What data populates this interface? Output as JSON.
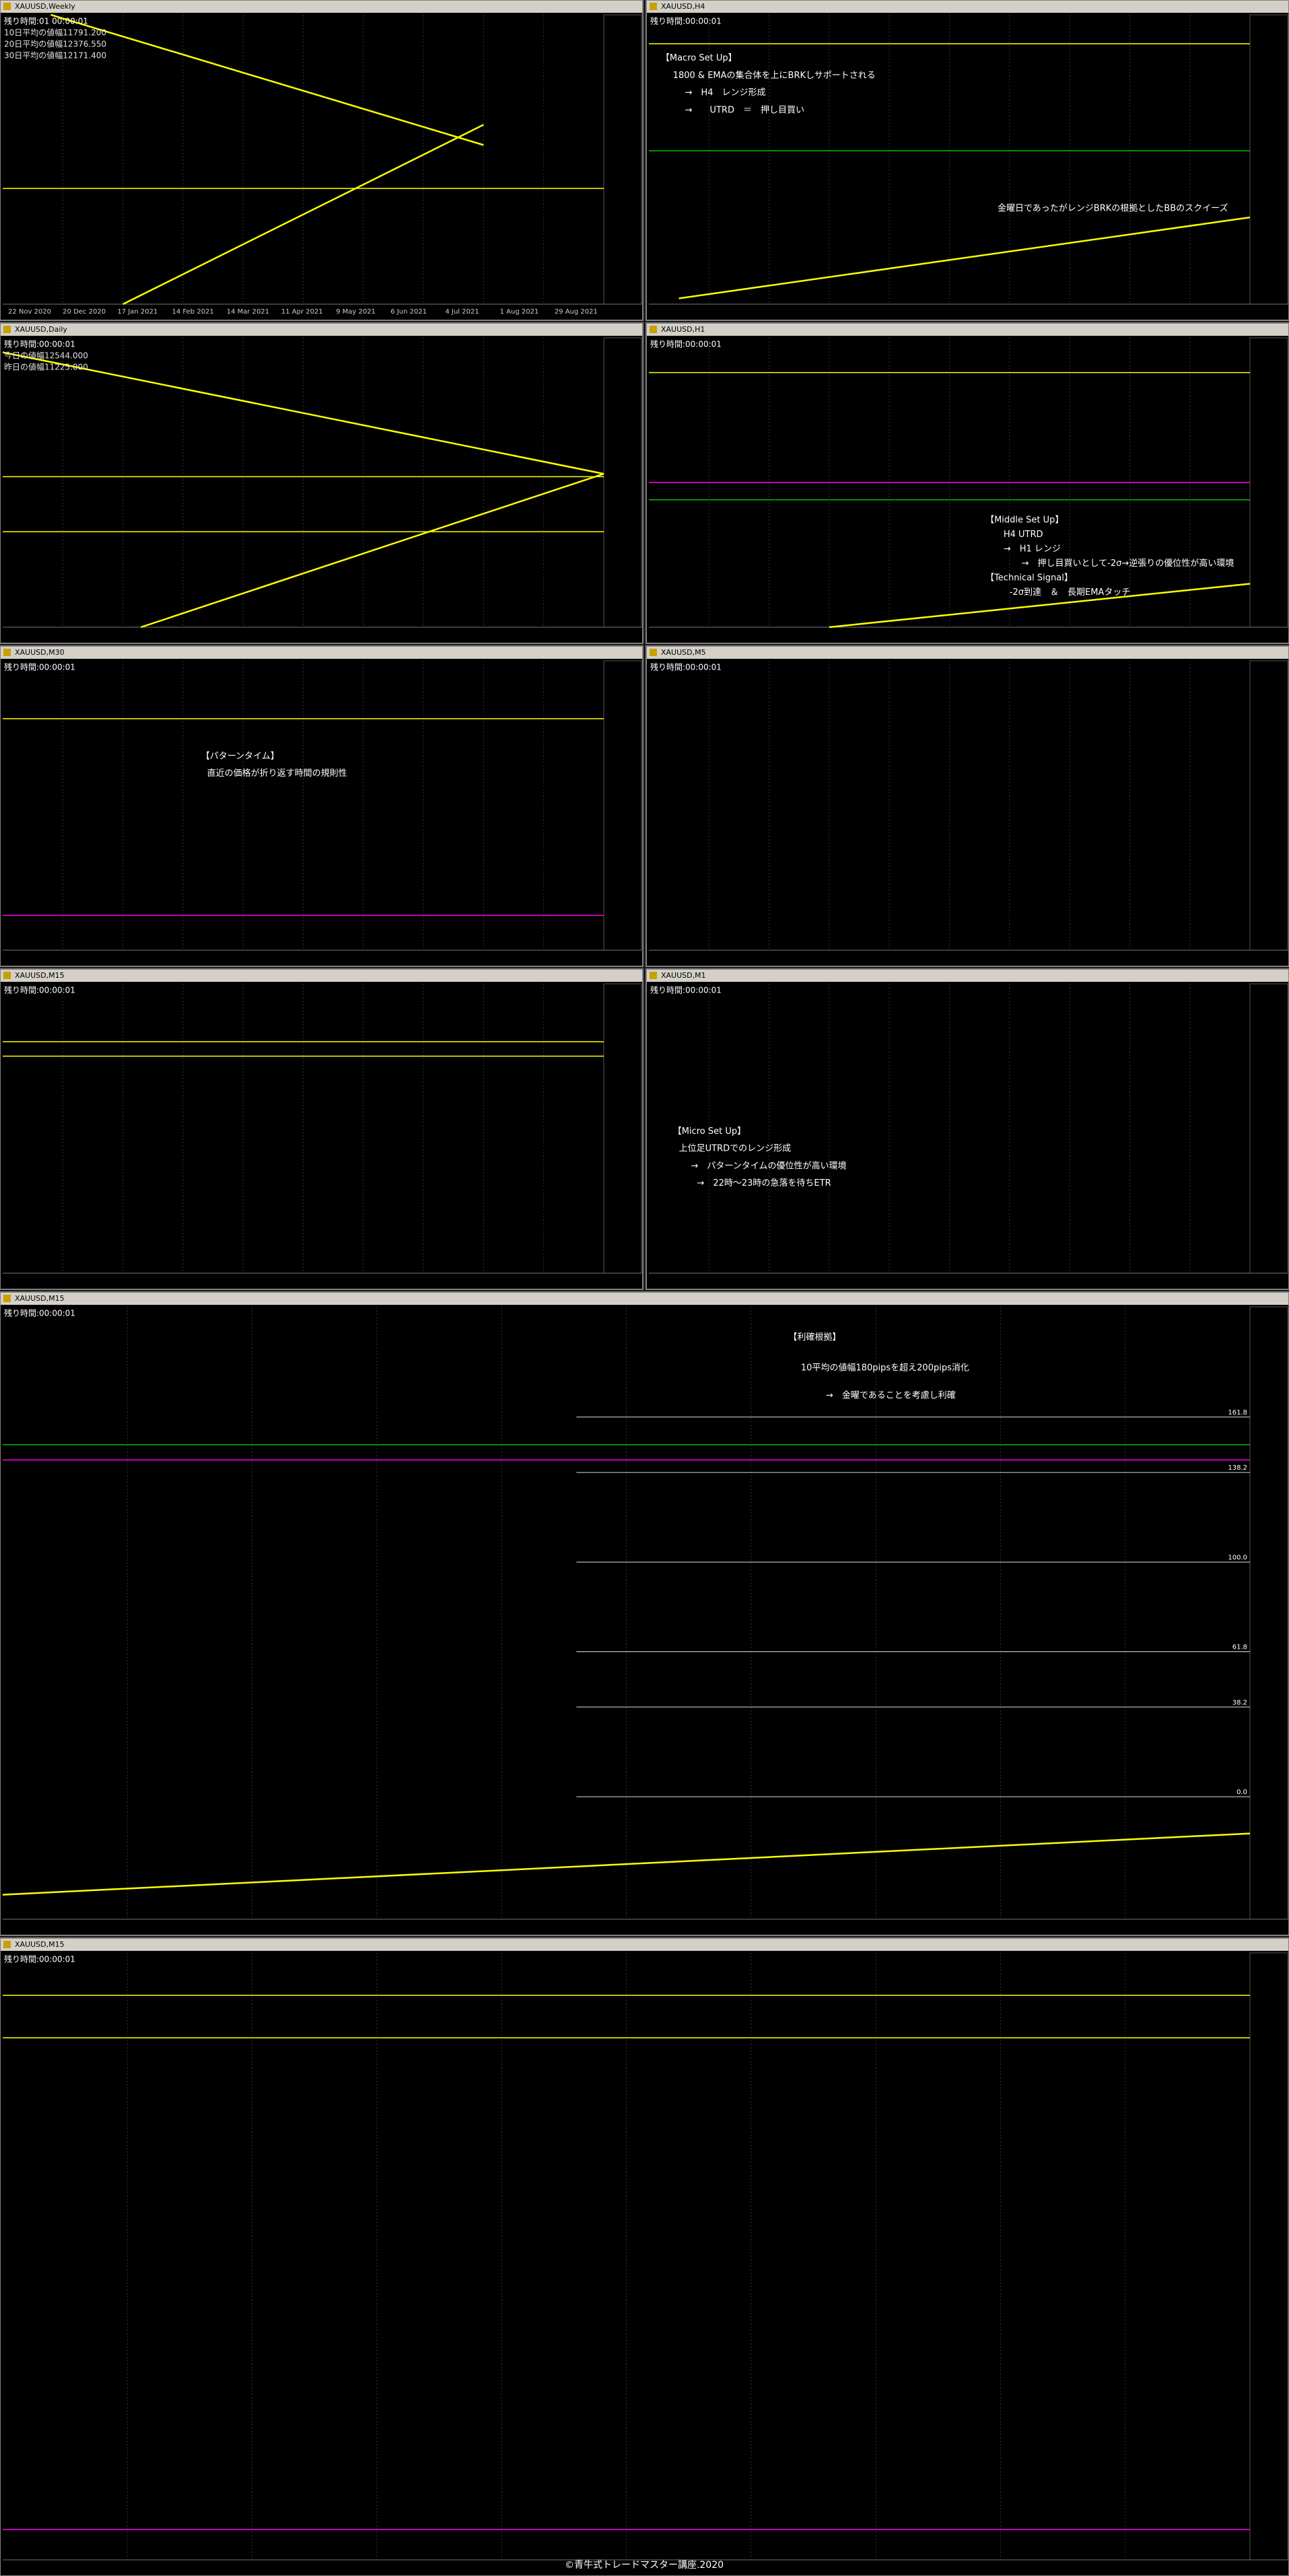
{
  "panels": [
    {
      "title": "XAUUSD,Weekly",
      "info": [
        "残り時間:01 00:00:01",
        "10日平均の値幅11791.200",
        "20日平均の値幅12376.550",
        "30日平均の値幅12171.400"
      ],
      "annotations": [],
      "dates": [
        "22 Nov 2020",
        "20 Dec 2020",
        "17 Jan 2021",
        "14 Feb 2021",
        "14 Mar 2021",
        "11 Apr 2021",
        "9 May 2021",
        "6 Jun 2021",
        "4 Jul 2021",
        "1 Aug 2021",
        "29 Aug 2021"
      ]
    },
    {
      "title": "XAUUSD,H4",
      "info": [
        "残り時間:00:00:01"
      ],
      "annotations": [
        "【Macro Set Up】",
        "1800 & EMAの集合体を上にBRKしサポートされる",
        "→　H4　レンジ形成",
        "→　　UTRD　＝　押し目買い",
        "金曜日であったがレンジBRKの根拠としたBBのスクイーズ"
      ],
      "dates": []
    },
    {
      "title": "XAUUSD,Daily",
      "info": [
        "残り時間:00:00:01",
        "今日の値幅12544.000",
        "昨日の値幅11225.000"
      ],
      "annotations": [],
      "dates": []
    },
    {
      "title": "XAUUSD,H1",
      "info": [
        "残り時間:00:00:01"
      ],
      "annotations": [
        "【Middle Set Up】",
        "H4 UTRD",
        "→　H1 レンジ",
        "→　押し目買いとして-2σ→逆張りの優位性が高い環境",
        "【Technical Signal】",
        "-2σ到達　＆　長期EMAタッチ"
      ],
      "dates": []
    },
    {
      "title": "XAUUSD,M30",
      "info": [
        "残り時間:00:00:01"
      ],
      "annotations": [
        "【パターンタイム】",
        "直近の価格が折り返す時間の規則性"
      ],
      "dates": []
    },
    {
      "title": "XAUUSD,M5",
      "info": [
        "残り時間:00:00:01"
      ],
      "annotations": [],
      "dates": []
    },
    {
      "title": "XAUUSD,M15",
      "info": [
        "残り時間:00:00:01"
      ],
      "annotations": [],
      "dates": []
    },
    {
      "title": "XAUUSD,M1",
      "info": [
        "残り時間:00:00:01"
      ],
      "annotations": [
        "【Micro Set Up】",
        "上位足UTRDでのレンジ形成",
        "→　パターンタイムの優位性が高い環境",
        "→　22時〜23時の急落を待ちETR"
      ],
      "dates": []
    },
    {
      "title": "XAUUSD,M15",
      "info": [
        "残り時間:00:00:01"
      ],
      "annotations": [
        "【利確根拠】",
        "10平均の値幅180pipsを超え200pips消化",
        "→　金曜であることを考慮し利確"
      ],
      "dates": [],
      "fib_levels": [
        {
          "value": 161.8,
          "label": "161.8"
        },
        {
          "value": 138.2,
          "label": "138.2"
        },
        {
          "value": 100,
          "label": "100.0"
        },
        {
          "value": 61.8,
          "label": "61.8"
        },
        {
          "value": 38.2,
          "label": "38.2"
        },
        {
          "value": 0,
          "label": "0.0"
        }
      ]
    },
    {
      "title": "XAUUSD,M15",
      "info": [
        "残り時間:00:00:01"
      ],
      "annotations": [],
      "dates": []
    }
  ],
  "footer": "©青牛式トレードマスター講座.2020"
}
